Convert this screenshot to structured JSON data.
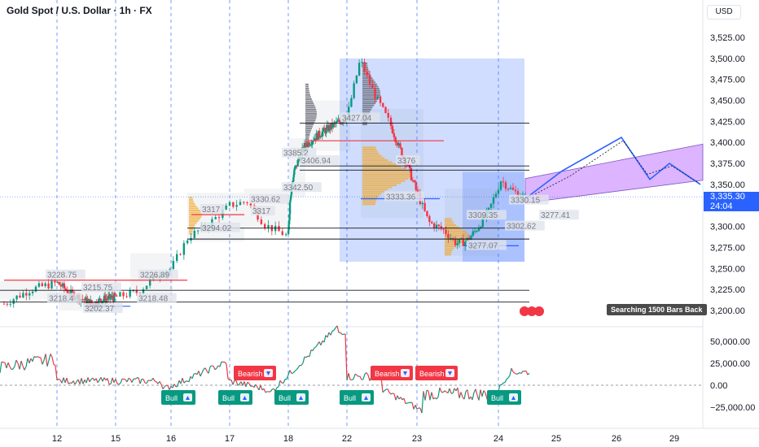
{
  "header": {
    "title": "Gold Spot / U.S. Dollar · 1h · FX",
    "currency": "USD"
  },
  "price_axis": {
    "labels": [
      "3,525.00",
      "3,500.00",
      "3,475.00",
      "3,450.00",
      "3,425.00",
      "3,400.00",
      "3,375.00",
      "3,350.00",
      "3,300.00",
      "3,275.00",
      "3,250.00",
      "3,225.00",
      "3,200.00"
    ],
    "current_price": "3,335.30",
    "countdown": "24:04"
  },
  "osc_axis": {
    "labels": [
      "50,000.00",
      "25,000.00",
      "0.00",
      "−25,000.00"
    ]
  },
  "time_axis": {
    "labels": [
      "12",
      "15",
      "16",
      "17",
      "18",
      "22",
      "23",
      "24",
      "25",
      "26",
      "29"
    ]
  },
  "status": {
    "searching": "Searching 1500 Bars Back"
  },
  "chart_data": [
    {
      "type": "candlestick",
      "title": "Gold Spot / U.S. Dollar · 1h · FX",
      "y_unit": "USD",
      "ylim": [
        3185,
        3545
      ],
      "x_day_labels": [
        "12",
        "15",
        "16",
        "17",
        "18",
        "22",
        "23",
        "24",
        "25",
        "26",
        "29"
      ],
      "price_marks": [
        "3228.75",
        "3215.75",
        "3218.4",
        "3202.37",
        "3218.48",
        "3226.89",
        "3317",
        "3294.02",
        "3330.62",
        "3317",
        "3342.50",
        "3385.2",
        "3406.94",
        "3427.04",
        "3376",
        "3333.36",
        "3309.35",
        "3330.15",
        "3277.41",
        "3302.62",
        "3277.07"
      ],
      "close": 3335.3,
      "vertical_dashed_days": [
        "12",
        "15",
        "16",
        "17",
        "18",
        "22",
        "23",
        "24"
      ],
      "horizontal_levels": [
        3423,
        3372,
        3367,
        3298,
        3285,
        3224,
        3210
      ],
      "channel": {
        "from": {
          "day": "24.3",
          "low": 3328,
          "high": 3355
        },
        "to": {
          "day": "29.3",
          "low": 3355,
          "high": 3398
        }
      },
      "projection_path": [
        [
          24.5,
          3333
        ],
        [
          25.2,
          3366
        ],
        [
          26.0,
          3406
        ],
        [
          26.5,
          3356
        ],
        [
          27.0,
          3375
        ],
        [
          27.5,
          3350
        ]
      ]
    },
    {
      "type": "line",
      "name": "oscillator",
      "ylim": [
        -40000,
        70000
      ],
      "signals": [
        {
          "label": "Bull",
          "kind": "buy"
        },
        {
          "label": "Bull",
          "kind": "buy"
        },
        {
          "label": "Bearish",
          "kind": "sell"
        },
        {
          "label": "Bull",
          "kind": "buy"
        },
        {
          "label": "Bull",
          "kind": "buy"
        },
        {
          "label": "Bearish",
          "kind": "sell"
        },
        {
          "label": "Bearish",
          "kind": "sell"
        },
        {
          "label": "Bull",
          "kind": "buy"
        }
      ]
    }
  ]
}
